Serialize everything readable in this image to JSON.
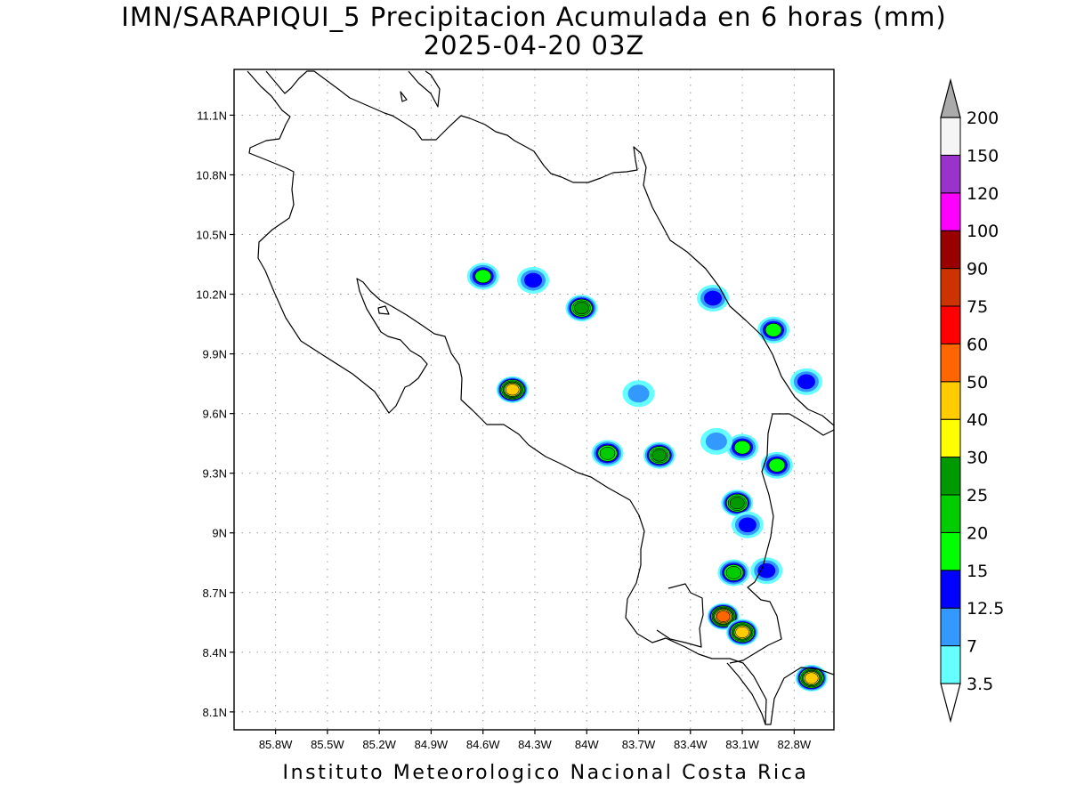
{
  "title": {
    "line1": "IMN/SARAPIQUI_5 Precipitacion Acumulada en 6 horas (mm)",
    "line2": "2025-04-20 03Z"
  },
  "footer": "Instituto Meteorologico Nacional Costa Rica",
  "map": {
    "lon_range": [
      -86.04,
      -82.57
    ],
    "lat_range": [
      8.01,
      11.33
    ],
    "lon_ticks": [
      "85.8W",
      "85.5W",
      "85.2W",
      "84.9W",
      "84.6W",
      "84.3W",
      "84W",
      "83.7W",
      "83.4W",
      "83.1W",
      "82.8W"
    ],
    "lon_tick_values": [
      -85.8,
      -85.5,
      -85.2,
      -84.9,
      -84.6,
      -84.3,
      -84.0,
      -83.7,
      -83.4,
      -83.1,
      -82.8
    ],
    "lat_ticks": [
      "8.1N",
      "8.4N",
      "8.7N",
      "9N",
      "9.3N",
      "9.6N",
      "9.9N",
      "10.2N",
      "10.5N",
      "10.8N",
      "11.1N"
    ],
    "lat_tick_values": [
      8.1,
      8.4,
      8.7,
      9.0,
      9.3,
      9.6,
      9.9,
      10.2,
      10.5,
      10.8,
      11.1
    ],
    "grid": "dotted"
  },
  "colorbar": {
    "labels": [
      "3.5",
      "7",
      "12.5",
      "15",
      "20",
      "25",
      "30",
      "40",
      "50",
      "60",
      "75",
      "90",
      "100",
      "120",
      "150",
      "200"
    ],
    "colors": [
      "#ffffff",
      "#66ffff",
      "#3399ff",
      "#0000ff",
      "#00ff00",
      "#00cc00",
      "#009900",
      "#ffff00",
      "#ffcc00",
      "#ff6600",
      "#ff0000",
      "#cc3300",
      "#990000",
      "#ff00ff",
      "#9933cc",
      "#f5f5f5",
      "#aaaaaa"
    ],
    "units": "mm"
  },
  "precip_cells": [
    {
      "lon": -84.43,
      "lat": 9.72,
      "max_mm": 40
    },
    {
      "lon": -84.03,
      "lat": 10.13,
      "max_mm": 25
    },
    {
      "lon": -83.21,
      "lat": 8.58,
      "max_mm": 50
    },
    {
      "lon": -83.1,
      "lat": 8.5,
      "max_mm": 40
    },
    {
      "lon": -82.7,
      "lat": 8.27,
      "max_mm": 40
    },
    {
      "lon": -83.13,
      "lat": 9.15,
      "max_mm": 25
    },
    {
      "lon": -83.58,
      "lat": 9.39,
      "max_mm": 25
    },
    {
      "lon": -83.88,
      "lat": 9.4,
      "max_mm": 20
    },
    {
      "lon": -83.15,
      "lat": 8.8,
      "max_mm": 20
    },
    {
      "lon": -82.92,
      "lat": 10.02,
      "max_mm": 15
    },
    {
      "lon": -82.73,
      "lat": 9.76,
      "max_mm": 12.5
    },
    {
      "lon": -83.1,
      "lat": 9.43,
      "max_mm": 15
    },
    {
      "lon": -84.6,
      "lat": 10.29,
      "max_mm": 15
    },
    {
      "lon": -83.27,
      "lat": 10.18,
      "max_mm": 12.5
    },
    {
      "lon": -82.9,
      "lat": 9.34,
      "max_mm": 15
    },
    {
      "lon": -83.07,
      "lat": 9.04,
      "max_mm": 12.5
    },
    {
      "lon": -82.96,
      "lat": 8.81,
      "max_mm": 12.5
    },
    {
      "lon": -84.31,
      "lat": 10.27,
      "max_mm": 12.5
    },
    {
      "lon": -83.7,
      "lat": 9.7,
      "max_mm": 7
    },
    {
      "lon": -83.25,
      "lat": 9.46,
      "max_mm": 7
    }
  ]
}
